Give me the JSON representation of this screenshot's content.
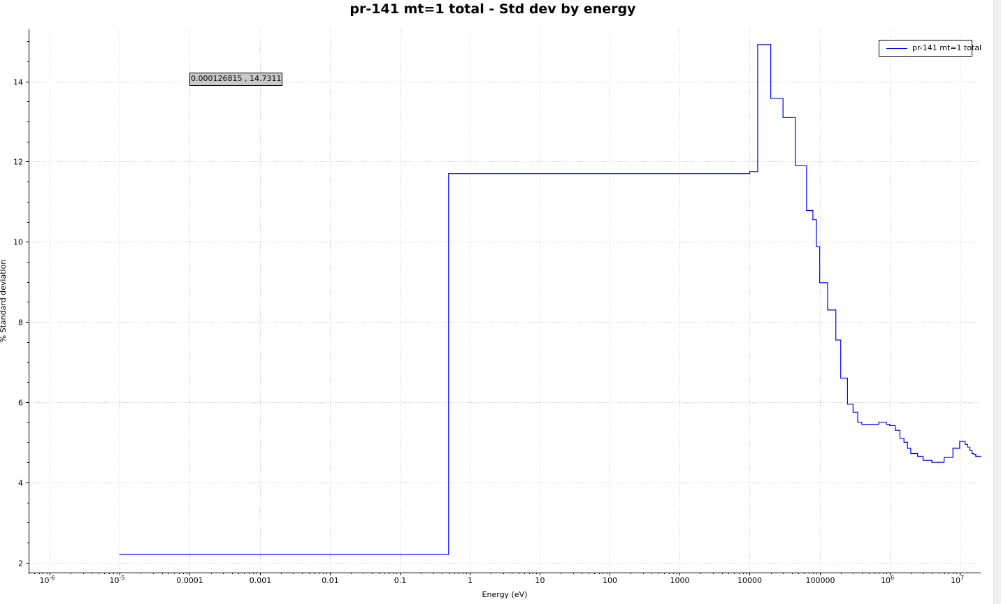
{
  "chart_data": {
    "type": "line",
    "title": "pr-141 mt=1 total - Std dev by energy",
    "xlabel": "Energy (eV)",
    "ylabel": "% Standard deviation",
    "xscale": "log",
    "xlim": [
      5e-07,
      20000000.0
    ],
    "ylim": [
      1.75,
      15.3
    ],
    "grid": true,
    "legend_position": "top-right",
    "x_ticks": [
      {
        "value": 1e-06,
        "base": "10",
        "exp": "-6",
        "label": ""
      },
      {
        "value": 1e-05,
        "base": "10",
        "exp": "-5",
        "label": ""
      },
      {
        "value": 0.0001,
        "label": "0.0001"
      },
      {
        "value": 0.001,
        "label": "0.001"
      },
      {
        "value": 0.01,
        "label": "0.01"
      },
      {
        "value": 0.1,
        "label": "0.1"
      },
      {
        "value": 1,
        "label": "1"
      },
      {
        "value": 10,
        "label": "10"
      },
      {
        "value": 100,
        "label": "100"
      },
      {
        "value": 1000,
        "label": "1000"
      },
      {
        "value": 10000,
        "label": "10000"
      },
      {
        "value": 100000,
        "label": "100000"
      },
      {
        "value": 1000000.0,
        "base": "10",
        "exp": "6",
        "label": ""
      },
      {
        "value": 10000000.0,
        "base": "10",
        "exp": "7",
        "label": ""
      }
    ],
    "y_ticks": [
      {
        "value": 2,
        "label": "2"
      },
      {
        "value": 4,
        "label": "4"
      },
      {
        "value": 6,
        "label": "6"
      },
      {
        "value": 8,
        "label": "8"
      },
      {
        "value": 10,
        "label": "10"
      },
      {
        "value": 12,
        "label": "12"
      },
      {
        "value": 14,
        "label": "14"
      }
    ],
    "series": [
      {
        "name": "pr-141 mt=1 total",
        "color": "#0000ff",
        "style": "step",
        "x": [
          1e-05,
          0.5,
          10000,
          13000,
          20000,
          30000,
          45000,
          65000,
          80000,
          90000,
          100000,
          130000,
          170000,
          200000,
          250000,
          280000,
          300000,
          350000,
          400000,
          500000,
          700000,
          900000,
          1000000,
          1200000,
          1400000,
          1600000,
          1800000,
          2000000,
          2500000,
          3000000,
          4000000,
          5000000,
          6000000,
          7000000,
          8000000,
          9000000,
          10000000,
          12000000,
          13000000,
          14000000,
          15000000,
          16000000,
          17000000,
          18000000,
          20000000
        ],
        "y": [
          2.2,
          11.7,
          11.75,
          14.92,
          13.58,
          13.1,
          11.9,
          10.78,
          10.55,
          9.88,
          8.98,
          8.3,
          7.55,
          6.6,
          5.95,
          5.95,
          5.75,
          5.5,
          5.45,
          5.45,
          5.5,
          5.45,
          5.42,
          5.3,
          5.1,
          5.0,
          4.85,
          4.72,
          4.65,
          4.55,
          4.5,
          4.5,
          4.62,
          4.62,
          4.85,
          4.85,
          5.02,
          4.95,
          4.88,
          4.8,
          4.72,
          4.7,
          4.65,
          4.65,
          4.65
        ]
      }
    ],
    "tooltip": "0.000126815 , 14.7311"
  }
}
